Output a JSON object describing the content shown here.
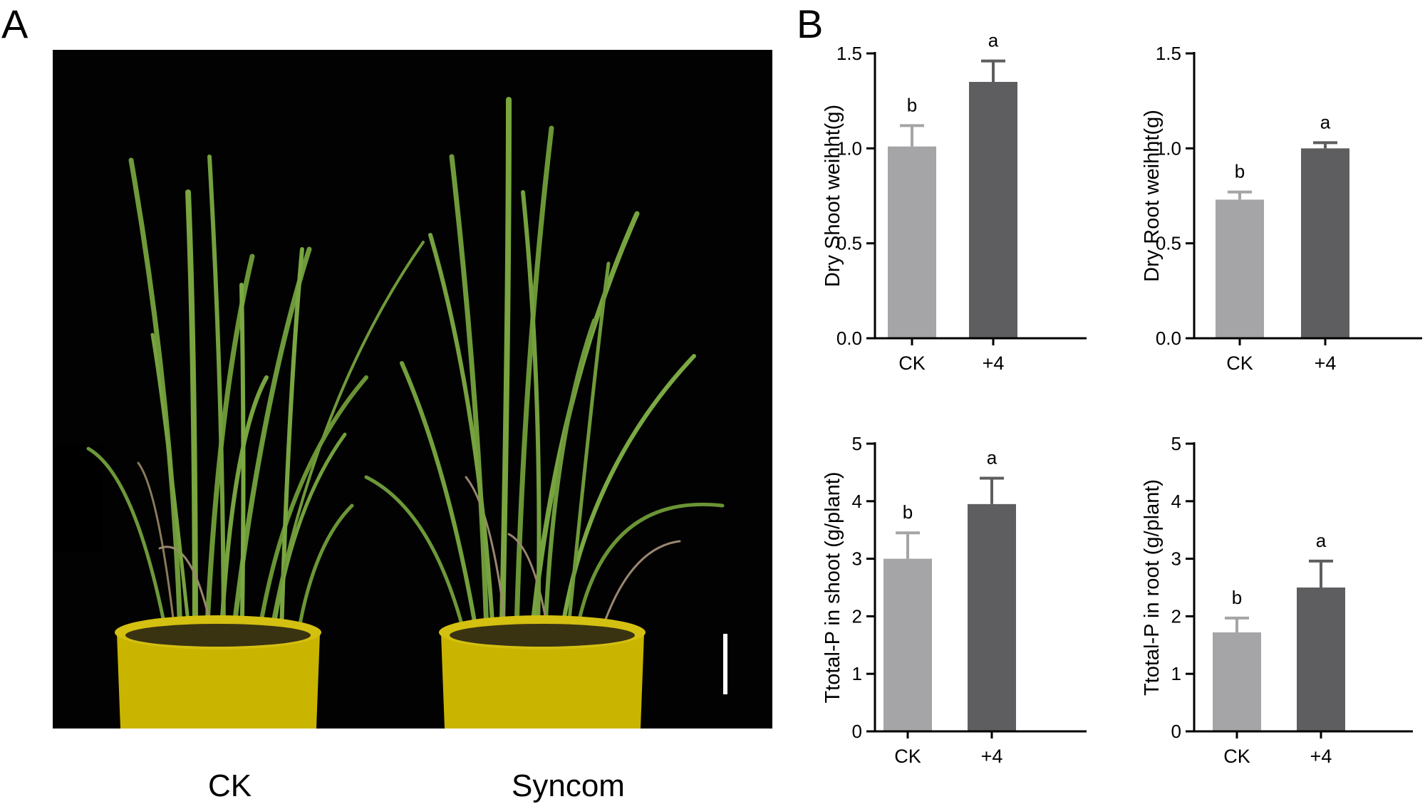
{
  "panel_a": {
    "letter": "A",
    "captions": [
      "CK",
      "Syncom"
    ],
    "photo_description_icon": "rice-plants-photo-icon"
  },
  "panel_b": {
    "letter": "B"
  },
  "colors": {
    "ck_bar": "#a5a5a8",
    "treat_bar": "#5e5e60",
    "axis": "#000000"
  },
  "chart_data": [
    {
      "type": "bar",
      "categories": [
        "CK",
        "+4"
      ],
      "values": [
        1.01,
        1.35
      ],
      "errors": [
        0.11,
        0.11
      ],
      "significance": [
        "b",
        "a"
      ],
      "ylabel": "Dry Shoot weihht(g)",
      "ylim": [
        0,
        1.5
      ],
      "yticks": [
        0.0,
        0.5,
        1.0,
        1.5
      ],
      "ytick_labels": [
        "0.0",
        "0.5",
        "1.0",
        "1.5"
      ]
    },
    {
      "type": "bar",
      "categories": [
        "CK",
        "+4"
      ],
      "values": [
        0.73,
        1.0
      ],
      "errors": [
        0.04,
        0.03
      ],
      "significance": [
        "b",
        "a"
      ],
      "ylabel": "Dry Root weihht(g)",
      "ylim": [
        0,
        1.5
      ],
      "yticks": [
        0.0,
        0.5,
        1.0,
        1.5
      ],
      "ytick_labels": [
        "0.0",
        "0.5",
        "1.0",
        "1.5"
      ]
    },
    {
      "type": "bar",
      "categories": [
        "CK",
        "+4"
      ],
      "values": [
        3.0,
        3.95
      ],
      "errors": [
        0.45,
        0.45
      ],
      "significance": [
        "b",
        "a"
      ],
      "ylabel": "Ttotal-P in shoot (g/plant)",
      "ylim": [
        0,
        5
      ],
      "yticks": [
        0,
        1,
        2,
        3,
        4,
        5
      ],
      "ytick_labels": [
        "0",
        "1",
        "2",
        "3",
        "4",
        "5"
      ]
    },
    {
      "type": "bar",
      "categories": [
        "CK",
        "+4"
      ],
      "values": [
        1.72,
        2.5
      ],
      "errors": [
        0.25,
        0.46
      ],
      "significance": [
        "b",
        "a"
      ],
      "ylabel": "Ttotal-P in root (g/plant)",
      "ylim": [
        0,
        5
      ],
      "yticks": [
        0,
        1,
        2,
        3,
        4,
        5
      ],
      "ytick_labels": [
        "0",
        "1",
        "2",
        "3",
        "4",
        "5"
      ]
    }
  ]
}
